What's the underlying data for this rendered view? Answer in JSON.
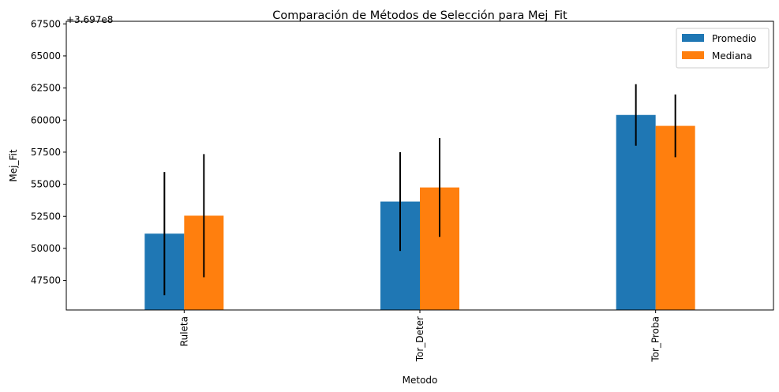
{
  "chart_data": {
    "type": "bar",
    "title": "Comparación de Métodos de Selección para Mej_Fit",
    "xlabel": "Metodo",
    "ylabel": "Mej_Fit",
    "offset_text": "+3.697e8",
    "categories": [
      "Ruleta",
      "Tor_Deter",
      "Tor_Proba"
    ],
    "series": [
      {
        "name": "Promedio",
        "color": "#1f77b4",
        "values": [
          51150,
          53650,
          60400
        ],
        "error": [
          4800,
          3850,
          2400
        ]
      },
      {
        "name": "Mediana",
        "color": "#ff7f0e",
        "values": [
          52550,
          54750,
          59550
        ],
        "error": [
          4800,
          3850,
          2450
        ]
      }
    ],
    "ylim": [
      45200,
      67700
    ],
    "yticks": [
      47500,
      50000,
      52500,
      55000,
      57500,
      60000,
      62500,
      65000,
      67500
    ],
    "grid": false,
    "legend_position": "top-right",
    "error_bar_color": "#000000"
  }
}
